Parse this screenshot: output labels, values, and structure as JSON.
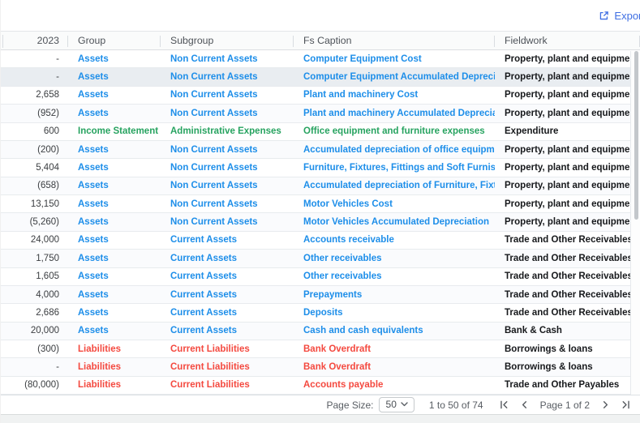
{
  "toolbar": {
    "export_label": "Export"
  },
  "icons": {
    "export": "external-link-icon",
    "page_size": "chevron-down-icon",
    "first_page": "chevron-bar-left-icon",
    "prev_page": "chevron-left-icon",
    "next_page": "chevron-right-icon",
    "last_page": "chevron-bar-right-icon"
  },
  "colors": {
    "assets_blue": "#1d8ee9",
    "income_green": "#27a360",
    "liabilities_red": "#f4493f",
    "export_blue": "#3f6fe3"
  },
  "table": {
    "columns": [
      {
        "key": "y2023",
        "label": "2023"
      },
      {
        "key": "group",
        "label": "Group"
      },
      {
        "key": "subgroup",
        "label": "Subgroup"
      },
      {
        "key": "fs_caption",
        "label": "Fs Caption"
      },
      {
        "key": "fieldwork",
        "label": "Fieldwork"
      }
    ],
    "rows": [
      {
        "value": "-",
        "group": "Assets",
        "subgroup": "Non Current Assets",
        "fs_caption": "Computer Equipment Cost",
        "fieldwork": "Property, plant and equipme...",
        "category": "assets",
        "highlighted": false
      },
      {
        "value": "-",
        "group": "Assets",
        "subgroup": "Non Current Assets",
        "fs_caption": "Computer Equipment Accumulated Depreciati...",
        "fieldwork": "Property, plant and equipme...",
        "category": "assets",
        "highlighted": true
      },
      {
        "value": "2,658",
        "group": "Assets",
        "subgroup": "Non Current Assets",
        "fs_caption": "Plant and machinery Cost",
        "fieldwork": "Property, plant and equipme...",
        "category": "assets",
        "highlighted": false
      },
      {
        "value": "(952)",
        "group": "Assets",
        "subgroup": "Non Current Assets",
        "fs_caption": "Plant and machinery Accumulated Depreciation",
        "fieldwork": "Property, plant and equipme...",
        "category": "assets",
        "highlighted": false
      },
      {
        "value": "600",
        "group": "Income Statement",
        "subgroup": "Administrative Expenses",
        "fs_caption": "Office equipment and furniture expenses",
        "fieldwork": "Expenditure",
        "category": "income",
        "highlighted": false
      },
      {
        "value": "(200)",
        "group": "Assets",
        "subgroup": "Non Current Assets",
        "fs_caption": "Accumulated depreciation of office equipmen...",
        "fieldwork": "Property, plant and equipme...",
        "category": "assets",
        "highlighted": false
      },
      {
        "value": "5,404",
        "group": "Assets",
        "subgroup": "Non Current Assets",
        "fs_caption": "Furniture, Fixtures, Fittings and Soft Furnishin...",
        "fieldwork": "Property, plant and equipme...",
        "category": "assets",
        "highlighted": false
      },
      {
        "value": "(658)",
        "group": "Assets",
        "subgroup": "Non Current Assets",
        "fs_caption": "Accumulated depreciation of Furniture, Fixtur...",
        "fieldwork": "Property, plant and equipme...",
        "category": "assets",
        "highlighted": false
      },
      {
        "value": "13,150",
        "group": "Assets",
        "subgroup": "Non Current Assets",
        "fs_caption": "Motor Vehicles Cost",
        "fieldwork": "Property, plant and equipme...",
        "category": "assets",
        "highlighted": false
      },
      {
        "value": "(5,260)",
        "group": "Assets",
        "subgroup": "Non Current Assets",
        "fs_caption": "Motor Vehicles Accumulated Depreciation",
        "fieldwork": "Property, plant and equipme...",
        "category": "assets",
        "highlighted": false
      },
      {
        "value": "24,000",
        "group": "Assets",
        "subgroup": "Current Assets",
        "fs_caption": "Accounts receivable",
        "fieldwork": "Trade and Other Receivables",
        "category": "assets",
        "highlighted": false
      },
      {
        "value": "1,750",
        "group": "Assets",
        "subgroup": "Current Assets",
        "fs_caption": "Other receivables",
        "fieldwork": "Trade and Other Receivables",
        "category": "assets",
        "highlighted": false
      },
      {
        "value": "1,605",
        "group": "Assets",
        "subgroup": "Current Assets",
        "fs_caption": "Other receivables",
        "fieldwork": "Trade and Other Receivables",
        "category": "assets",
        "highlighted": false
      },
      {
        "value": "4,000",
        "group": "Assets",
        "subgroup": "Current Assets",
        "fs_caption": "Prepayments",
        "fieldwork": "Trade and Other Receivables",
        "category": "assets",
        "highlighted": false
      },
      {
        "value": "2,686",
        "group": "Assets",
        "subgroup": "Current Assets",
        "fs_caption": "Deposits",
        "fieldwork": "Trade and Other Receivables",
        "category": "assets",
        "highlighted": false
      },
      {
        "value": "20,000",
        "group": "Assets",
        "subgroup": "Current Assets",
        "fs_caption": "Cash and cash equivalents",
        "fieldwork": "Bank & Cash",
        "category": "assets",
        "highlighted": false
      },
      {
        "value": "(300)",
        "group": "Liabilities",
        "subgroup": "Current Liabilities",
        "fs_caption": "Bank Overdraft",
        "fieldwork": "Borrowings & loans",
        "category": "liabilities",
        "highlighted": false
      },
      {
        "value": "-",
        "group": "Liabilities",
        "subgroup": "Current Liabilities",
        "fs_caption": "Bank Overdraft",
        "fieldwork": "Borrowings & loans",
        "category": "liabilities",
        "highlighted": false
      },
      {
        "value": "(80,000)",
        "group": "Liabilities",
        "subgroup": "Current Liabilities",
        "fs_caption": "Accounts payable",
        "fieldwork": "Trade and Other Payables",
        "category": "liabilities",
        "highlighted": false
      }
    ]
  },
  "pagination": {
    "page_size_label": "Page Size:",
    "page_size_value": "50",
    "range_text": "1 to 50 of 74",
    "page_text": "Page 1 of 2"
  }
}
